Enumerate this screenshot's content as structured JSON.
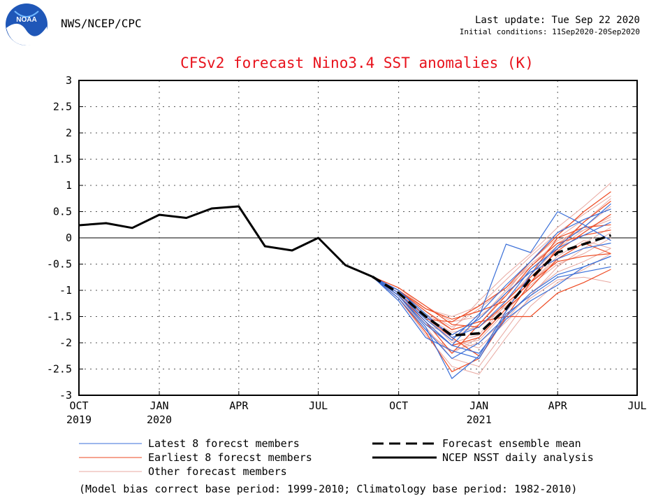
{
  "header": {
    "org": "NWS/NCEP/CPC",
    "last_update": "Last update: Tue Sep 22 2020",
    "initial_conditions": "Initial conditions: 11Sep2020-20Sep2020"
  },
  "logo": {
    "text": "NOAA",
    "icon": "noaa-logo-icon"
  },
  "footnote": "(Model bias correct base period: 1999-2010; Climatology base period: 1982-2010)",
  "colors": {
    "title": "#e8121c",
    "latest": "#3a6fd8",
    "earliest": "#ee4a22",
    "other": "#e8a8a0",
    "analysis": "#000000"
  },
  "legend": {
    "latest": "Latest 8 forecst members",
    "earliest": "Earliest 8 forecst members",
    "other": "Other forecast members",
    "mean": "Forecast ensemble mean",
    "analysis": "NCEP NSST daily analysis"
  },
  "chart_data": {
    "type": "line",
    "title": "CFSv2 forecast Nino3.4 SST anomalies (K)",
    "ylim": [
      -3,
      3
    ],
    "yticks": [
      3,
      2.5,
      2,
      1.5,
      1,
      0.5,
      0,
      -0.5,
      -1,
      -1.5,
      -2,
      -2.5,
      -3
    ],
    "ytick_labels": [
      "3",
      "2.5",
      "2",
      "1.5",
      "1",
      "0.5",
      "0",
      "-0.5",
      "-1",
      "-1.5",
      "-2",
      "-2.5",
      "-3"
    ],
    "xlim": [
      "2019-10-01",
      "2021-07-01"
    ],
    "x_ticks": [
      {
        "date": "2019-10-01",
        "month": "OCT",
        "year": "2019"
      },
      {
        "date": "2020-01-01",
        "month": "JAN",
        "year": "2020"
      },
      {
        "date": "2020-04-01",
        "month": "APR",
        "year": ""
      },
      {
        "date": "2020-07-01",
        "month": "JUL",
        "year": ""
      },
      {
        "date": "2020-10-01",
        "month": "OCT",
        "year": ""
      },
      {
        "date": "2021-01-01",
        "month": "JAN",
        "year": "2021"
      },
      {
        "date": "2021-04-01",
        "month": "APR",
        "year": ""
      },
      {
        "date": "2021-07-01",
        "month": "JUL",
        "year": ""
      }
    ],
    "grid": true,
    "zero_line": true,
    "analysis": {
      "name": "NCEP NSST daily analysis",
      "x": [
        "2019-10-01",
        "2019-11-01",
        "2019-12-01",
        "2020-01-01",
        "2020-02-01",
        "2020-03-01",
        "2020-04-01",
        "2020-05-01",
        "2020-06-01",
        "2020-07-01",
        "2020-08-01",
        "2020-09-01"
      ],
      "y": [
        0.24,
        0.28,
        0.19,
        0.44,
        0.38,
        0.56,
        0.6,
        -0.16,
        -0.24,
        0.0,
        -0.52,
        -0.74
      ]
    },
    "ensemble_mean": {
      "name": "Forecast ensemble mean",
      "x": [
        "2020-09-01",
        "2020-10-01",
        "2020-11-01",
        "2020-12-01",
        "2021-01-01",
        "2021-02-01",
        "2021-03-01",
        "2021-04-01",
        "2021-05-01",
        "2021-06-01"
      ],
      "y": [
        -0.74,
        -1.05,
        -1.5,
        -1.86,
        -1.82,
        -1.35,
        -0.78,
        -0.28,
        -0.12,
        0.05
      ]
    },
    "member_months": [
      "2020-09-01",
      "2020-10-01",
      "2020-11-01",
      "2020-12-01",
      "2021-01-01",
      "2021-02-01",
      "2021-03-01",
      "2021-04-01",
      "2021-05-01",
      "2021-06-01"
    ],
    "latest_members": [
      [
        -0.74,
        -1.1,
        -1.7,
        -2.68,
        -2.25,
        -1.4,
        -0.7,
        -0.15,
        0.2,
        0.65
      ],
      [
        -0.74,
        -1.05,
        -1.6,
        -2.05,
        -1.5,
        -0.12,
        -0.28,
        0.5,
        0.25,
        -0.05
      ],
      [
        -0.74,
        -1.15,
        -1.75,
        -2.3,
        -2.0,
        -1.5,
        -1.05,
        -0.7,
        -0.55,
        -0.35
      ],
      [
        -0.74,
        -1.0,
        -1.45,
        -1.9,
        -1.7,
        -1.2,
        -0.6,
        -0.2,
        0.05,
        0.3
      ],
      [
        -0.74,
        -1.2,
        -1.9,
        -2.15,
        -2.3,
        -1.45,
        -1.1,
        -0.75,
        -0.65,
        -0.55
      ],
      [
        -0.74,
        -1.05,
        -1.55,
        -1.95,
        -1.45,
        -0.9,
        -0.45,
        0.1,
        0.35,
        0.55
      ],
      [
        -0.74,
        -1.1,
        -1.65,
        -2.05,
        -2.2,
        -1.55,
        -1.2,
        -0.9,
        -0.55,
        -0.35
      ],
      [
        -0.74,
        -1.0,
        -1.5,
        -1.85,
        -1.55,
        -1.05,
        -0.65,
        -0.4,
        -0.2,
        -0.1
      ]
    ],
    "earliest_members": [
      [
        -0.74,
        -1.05,
        -1.55,
        -1.6,
        -1.3,
        -0.95,
        -0.45,
        0.05,
        0.5,
        0.88
      ],
      [
        -0.74,
        -1.15,
        -1.8,
        -2.55,
        -2.3,
        -1.5,
        -0.85,
        -0.2,
        0.3,
        0.7
      ],
      [
        -0.74,
        -1.0,
        -1.4,
        -1.75,
        -1.6,
        -1.5,
        -1.5,
        -1.05,
        -0.85,
        -0.6
      ],
      [
        -0.74,
        -1.1,
        -1.65,
        -2.05,
        -1.9,
        -1.35,
        -0.95,
        -0.4,
        -0.1,
        -0.3
      ],
      [
        -0.74,
        -1.0,
        -1.35,
        -1.55,
        -1.4,
        -1.2,
        -0.75,
        -0.25,
        0.1,
        0.45
      ],
      [
        -0.74,
        -1.05,
        -1.5,
        -1.9,
        -2.25,
        -1.4,
        -0.7,
        0.0,
        0.2,
        0.25
      ],
      [
        -0.74,
        -1.1,
        -1.6,
        -2.2,
        -1.65,
        -1.1,
        -0.55,
        -0.1,
        0.05,
        0.15
      ],
      [
        -0.74,
        -0.95,
        -1.3,
        -1.65,
        -1.7,
        -1.25,
        -0.85,
        -0.45,
        -0.35,
        -0.3
      ]
    ],
    "other_members": [
      [
        -0.74,
        -1.0,
        -1.45,
        -1.75,
        -1.2,
        -0.7,
        -0.3,
        0.2,
        0.6,
        1.05
      ],
      [
        -0.74,
        -1.1,
        -1.75,
        -2.2,
        -1.9,
        -1.25,
        -0.85,
        -0.4,
        -0.1,
        0.2
      ],
      [
        -0.74,
        -1.05,
        -1.5,
        -1.95,
        -2.1,
        -1.6,
        -1.15,
        -0.8,
        -0.75,
        -0.85
      ],
      [
        -0.74,
        -0.95,
        -1.3,
        -1.6,
        -1.5,
        -1.1,
        -0.6,
        -0.15,
        0.3,
        0.75
      ],
      [
        -0.74,
        -1.15,
        -1.85,
        -2.45,
        -2.6,
        -1.9,
        -1.3,
        -0.85,
        -0.6,
        -0.3
      ],
      [
        -0.74,
        -1.05,
        -1.55,
        -1.9,
        -1.65,
        -1.05,
        -0.45,
        0.0,
        0.35,
        0.55
      ],
      [
        -0.74,
        -1.1,
        -1.6,
        -2.05,
        -1.95,
        -1.4,
        -0.9,
        -0.5,
        -0.3,
        0.0
      ],
      [
        -0.74,
        -1.0,
        -1.4,
        -1.7,
        -1.35,
        -0.95,
        -0.55,
        -0.05,
        0.15,
        0.4
      ],
      [
        -0.74,
        -1.1,
        -1.7,
        -2.3,
        -2.45,
        -1.75,
        -1.1,
        -0.55,
        -0.2,
        0.1
      ],
      [
        -0.74,
        -1.05,
        -1.5,
        -1.8,
        -1.7,
        -1.3,
        -0.85,
        -0.35,
        -0.05,
        -0.2
      ],
      [
        -0.74,
        -0.95,
        -1.35,
        -1.5,
        -1.3,
        -0.8,
        -0.35,
        0.1,
        0.45,
        0.8
      ],
      [
        -0.74,
        -1.15,
        -1.8,
        -2.15,
        -2.0,
        -1.55,
        -1.05,
        -0.65,
        -0.45,
        -0.2
      ],
      [
        -0.74,
        -1.0,
        -1.5,
        -2.0,
        -1.85,
        -1.2,
        -0.7,
        -0.2,
        0.15,
        0.35
      ],
      [
        -0.74,
        -1.1,
        -1.65,
        -1.85,
        -1.55,
        -1.0,
        -0.5,
        -0.1,
        0.2,
        0.6
      ]
    ]
  }
}
